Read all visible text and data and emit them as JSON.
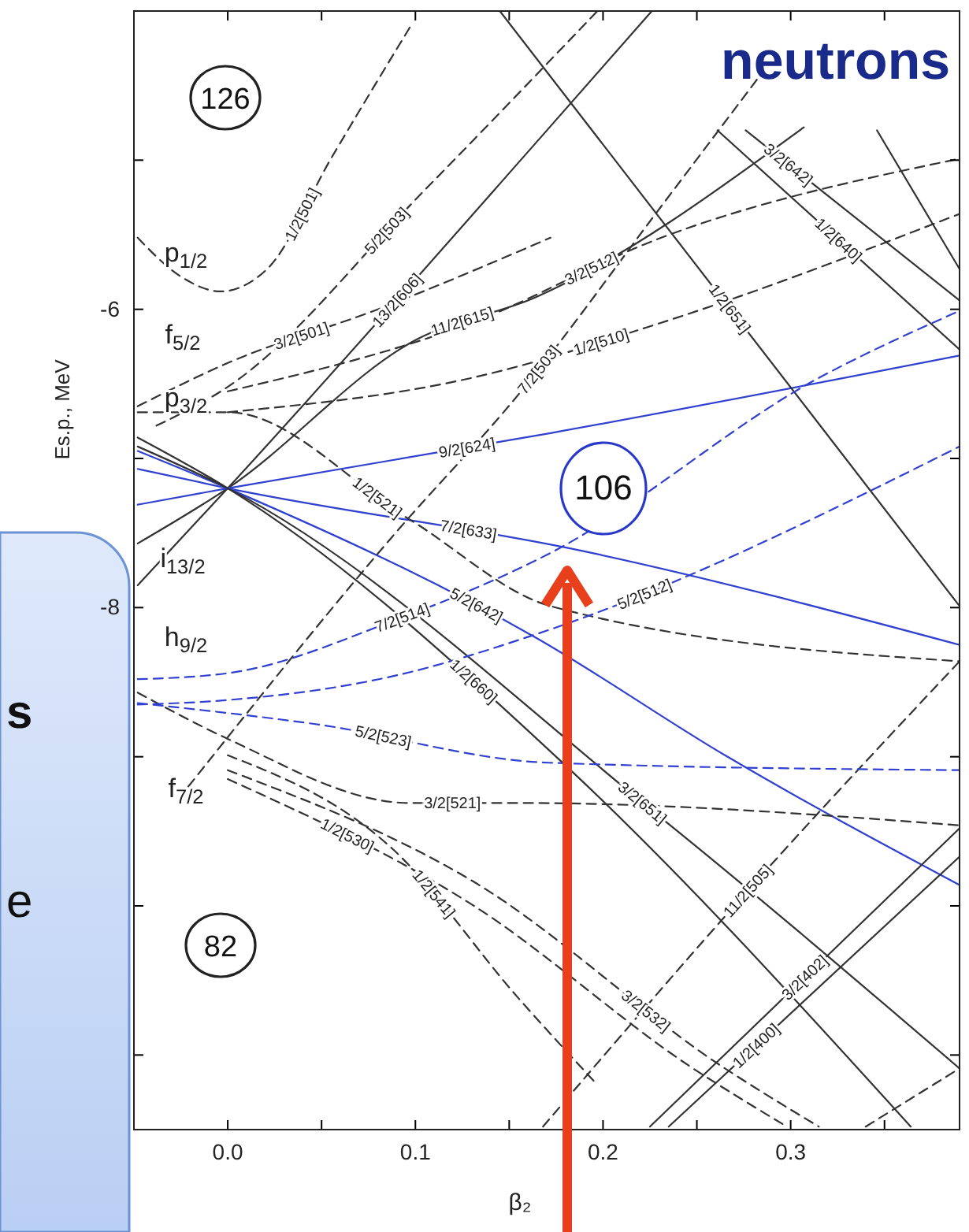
{
  "chart_data": {
    "type": "line",
    "xlabel": "β₂",
    "ylabel": "Es.p., MeV",
    "xlim": [
      -0.05,
      0.39
    ],
    "ylim": [
      -11.5,
      -4.0
    ],
    "xticks": [
      {
        "value": 0,
        "label": "0.0"
      },
      {
        "value": 0.05,
        "label": null
      },
      {
        "value": 0.1,
        "label": "0.1"
      },
      {
        "value": 0.15,
        "label": null
      },
      {
        "value": 0.2,
        "label": "0.2"
      },
      {
        "value": 0.25,
        "label": null
      },
      {
        "value": 0.3,
        "label": "0.3"
      },
      {
        "value": 0.35,
        "label": null
      }
    ],
    "yticks": [
      {
        "value": -5,
        "label": null
      },
      -6,
      {
        "value": -7,
        "label": null
      },
      -8,
      {
        "value": -9,
        "label": null
      },
      {
        "value": -10,
        "label": null
      },
      {
        "value": -11,
        "label": null
      }
    ],
    "marker": "none",
    "line_style": "solid",
    "series": [
      {
        "name": "1/2[501]",
        "color": "#333333",
        "line_style": "dashed",
        "x": [
          -0.048,
          -0.025,
          -0.004,
          0.021,
          0.055,
          0.098
        ],
        "values": [
          -5.52,
          -5.78,
          -5.88,
          -5.73,
          -4.99,
          -4.09
        ]
      },
      {
        "name": "5/2[503]",
        "color": "#333333",
        "line_style": "dashed",
        "x": [
          -0.038,
          0,
          0.105,
          0.197
        ],
        "values": [
          -6.78,
          -6.52,
          -5.2,
          -4.0
        ]
      },
      {
        "name": "13/2[606]",
        "color": "#333333",
        "x": [
          -0.048,
          0,
          0.168,
          0.226
        ],
        "values": [
          -7.85,
          -7.2,
          -4.83,
          -4.0
        ]
      },
      {
        "name": "11/2[615]",
        "color": "#333333",
        "x": [
          -0.048,
          0,
          0.101,
          0.164,
          0.307
        ],
        "values": [
          -7.57,
          -7.2,
          -6.2,
          -5.92,
          -4.78
        ]
      },
      {
        "name": "9/2[624]",
        "color": "#3040d0",
        "x": [
          -0.048,
          0,
          0.172,
          0.39
        ],
        "values": [
          -7.31,
          -7.2,
          -6.83,
          -6.31
        ]
      },
      {
        "name": "7/2[633]",
        "color": "#3040d0",
        "x": [
          -0.048,
          0,
          0.189,
          0.39
        ],
        "values": [
          -7.07,
          -7.2,
          -7.62,
          -8.25
        ]
      },
      {
        "name": "5/2[642]",
        "color": "#3040d0",
        "x": [
          -0.048,
          0,
          0.164,
          0.265,
          0.39
        ],
        "values": [
          -6.95,
          -7.2,
          -8.2,
          -8.99,
          -9.86
        ]
      },
      {
        "name": "1/2[660]",
        "color": "#333333",
        "x": [
          -0.048,
          0,
          0.181,
          0.364
        ],
        "values": [
          -6.86,
          -7.2,
          -9.07,
          -11.48
        ]
      },
      {
        "name": "3/2[651]",
        "color": "#333333",
        "x": [
          -0.048,
          0,
          0.231,
          0.39
        ],
        "values": [
          -6.92,
          -7.2,
          -9.41,
          -11.09
        ]
      },
      {
        "name": "1/2[651]",
        "color": "#333333",
        "x": [
          0.145,
          0.309,
          0.39
        ],
        "values": [
          -4.0,
          -6.67,
          -7.99
        ]
      },
      {
        "name": "1/2[640]",
        "color": "#333333",
        "x": [
          0.261,
          0.39
        ],
        "values": [
          -4.8,
          -6.27
        ]
      },
      {
        "name": "3/2[642]",
        "color": "#333333",
        "x": [
          0.276,
          0.39
        ],
        "values": [
          -4.8,
          -5.94
        ]
      },
      {
        "color": "#333333",
        "x": [
          0.346,
          0.39
        ],
        "values": [
          -4.8,
          -5.73
        ]
      },
      {
        "name": "11/2[505]",
        "color": "#333333",
        "line_style": "dashed",
        "x": [
          0.168,
          0.282,
          0.39
        ],
        "values": [
          -11.48,
          -9.83,
          -8.36
        ]
      },
      {
        "name": "3/2[402]",
        "color": "#333333",
        "x": [
          0.225,
          0.39
        ],
        "values": [
          -11.48,
          -9.48
        ]
      },
      {
        "name": "1/2[400]",
        "color": "#333333",
        "x": [
          0.235,
          0.39
        ],
        "values": [
          -11.48,
          -9.67
        ]
      },
      {
        "color": "#333333",
        "line_style": "dashed",
        "x": [
          0.34,
          0.39
        ],
        "values": [
          -11.48,
          -11.09
        ]
      },
      {
        "name": "1/2[521]",
        "color": "#333333",
        "line_style": "dashed",
        "x": [
          -0.048,
          0,
          0.097,
          0.172,
          0.39
        ],
        "values": [
          -6.69,
          -6.69,
          -7.41,
          -7.99,
          -8.36
        ]
      },
      {
        "name": "3/2[521]",
        "color": "#333333",
        "line_style": "dashed",
        "x": [
          -0.048,
          0,
          0.097,
          0.155,
          0.39
        ],
        "values": [
          -8.57,
          -8.88,
          -9.31,
          -9.31,
          -9.46
        ]
      },
      {
        "name": "7/2[514]",
        "color": "#3040d0",
        "line_style": "dashed",
        "x": [
          -0.048,
          0,
          0.088,
          0.171,
          0.315,
          0.39
        ],
        "values": [
          -8.48,
          -8.44,
          -8.09,
          -7.64,
          -6.46,
          -6.01
        ]
      },
      {
        "name": "5/2[512]",
        "color": "#3040d0",
        "line_style": "dashed",
        "x": [
          -0.048,
          0,
          0.088,
          0.164,
          0.39
        ],
        "values": [
          -8.65,
          -8.62,
          -8.46,
          -8.18,
          -6.92
        ]
      },
      {
        "name": "5/2[523]",
        "color": "#3040d0",
        "line_style": "dashed",
        "x": [
          -0.048,
          0.046,
          0.171,
          0.39
        ],
        "values": [
          -8.64,
          -8.78,
          -9.04,
          -9.09
        ]
      },
      {
        "name": "3/2[512]",
        "color": "#333333",
        "line_style": "dashed",
        "x": [
          0,
          0.13,
          0.231,
          0.39
        ],
        "values": [
          -6.55,
          -6.09,
          -5.52,
          -4.99
        ]
      },
      {
        "name": "1/2[510]",
        "color": "#333333",
        "line_style": "dashed",
        "x": [
          0,
          0.13,
          0.231,
          0.39
        ],
        "values": [
          -6.69,
          -6.46,
          -6.09,
          -5.36
        ]
      },
      {
        "name": "3/2[501]",
        "color": "#333333",
        "line_style": "dashed",
        "x": [
          -0.048,
          0,
          0.08,
          0.172
        ],
        "values": [
          -6.65,
          -6.36,
          -6.0,
          -5.52
        ]
      },
      {
        "name": "7/2[503]",
        "color": "#333333",
        "line_style": "dashed",
        "x": [
          -0.021,
          0.088,
          0.155,
          0.231,
          0.282
        ],
        "values": [
          -9.2,
          -7.52,
          -6.57,
          -5.31,
          -4.46
        ]
      },
      {
        "name": "1/2[541]",
        "color": "#333333",
        "line_style": "dashed",
        "x": [
          0,
          0.088,
          0.155,
          0.197
        ],
        "values": [
          -8.99,
          -9.62,
          -10.62,
          -11.2
        ]
      },
      {
        "name": "3/2[532]",
        "color": "#333333",
        "line_style": "dashed",
        "x": [
          0,
          0.13,
          0.265,
          0.315
        ],
        "values": [
          -9.09,
          -9.83,
          -11.09,
          -11.48
        ]
      },
      {
        "name": "1/2[530]",
        "color": "#333333",
        "line_style": "dashed",
        "x": [
          0,
          0.13,
          0.248,
          0.298
        ],
        "values": [
          -9.15,
          -9.99,
          -11.09,
          -11.48
        ]
      }
    ],
    "annotations": [
      "p$_{1/2}$",
      "f$_{5/2}$",
      "p$_{3/2}$",
      "i$_{13/2}$",
      "h$_{9/2}$",
      "f$_{7/2}$",
      "126",
      "82",
      "106",
      "neutrons",
      "s",
      "e"
    ]
  }
}
